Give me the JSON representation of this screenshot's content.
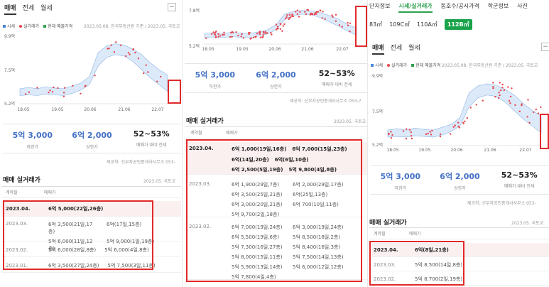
{
  "panel1": {
    "tabs": [
      "매매",
      "전세",
      "월세"
    ],
    "minus": "−",
    "legend": {
      "market": "시세",
      "real": "실거래가",
      "official": "현재 매물가격"
    },
    "source": "2023.05.08. 한국부동산원 기준 / 2023.05. 국토교",
    "chart": {
      "yticks": [
        "9.9억",
        "7.5억",
        "5.2억"
      ],
      "xticks": [
        "18.05",
        "19.05",
        "20.06",
        "21.06",
        "22.07"
      ]
    },
    "summary": [
      {
        "value": "5억 3,000",
        "label": "하한가"
      },
      {
        "value": "6억 2,000",
        "label": "상한가"
      },
      {
        "value": "52~53%",
        "label": "매매가 대비 전세"
      }
    ],
    "provider": "제공처: 신부자공인중개사사무소 053-",
    "sales_title": "매매 실거래가",
    "sales_date": "2023.05. 국토교",
    "col_ym": "계약월",
    "col_price": "매매가",
    "rows": [
      {
        "ym": "2023.04.",
        "deals": [
          "6억 5,000(22일,26층)"
        ]
      },
      {
        "ym": "2023.03.",
        "deals": [
          "6억 3,500(21일,17층)",
          "6억(17일,15층)",
          "5억 6,000(11일,12층)",
          "5억 9,000(1일,19층)"
        ]
      },
      {
        "ym": "2023.02.",
        "deals": [
          "5억 6,000(28일,8층)",
          "5억 6,000(4일,8층)"
        ]
      },
      {
        "ym": "2023.01.",
        "deals": [
          "6억 3,500(27일,24층)",
          "5억 7,500(3일,11층)"
        ]
      }
    ]
  },
  "panel2": {
    "chart": {
      "yticks": [
        "7.8억",
        "5.2억"
      ],
      "xticks": [
        "18.05",
        "19.05",
        "20.06",
        "21.06",
        "22.07"
      ]
    },
    "summary": [
      {
        "value": "5억 3,000",
        "label": "하한가"
      },
      {
        "value": "6억 2,000",
        "label": "상한가"
      },
      {
        "value": "52~53%",
        "label": "매매가 대비 전세"
      }
    ],
    "provider": "제공처: 신부자공인중개사사무소 053-7",
    "sales_title": "매매 실거래가",
    "sales_date": "2023.05. 국토교",
    "col_ym": "계약월",
    "col_price": "매매가",
    "rows": [
      {
        "ym": "2023.04.",
        "deals": [
          "6억 1,000(19일,16층)",
          "6억 7,000(15일,23층)",
          "6억(14일,20층)",
          "6억(6일,10층)",
          "6억 2,500(5일,19층)",
          "5억 9,800(4일,8층)"
        ]
      },
      {
        "ym": "2023.03.",
        "deals": [
          "6억 1,900(29일,7층)",
          "6억 2,000(29일,17층)",
          "6억 3,500(25일,21층)",
          "6억(25일,13층)",
          "6억 3,000(20일,21층)",
          "6억 700(10일,11층)",
          "5억 9,700(2일,18층)"
        ]
      },
      {
        "ym": "2023.02.",
        "deals": [
          "6억 7,000(19일,24층)",
          "6억 3,000(19일,24층)",
          "6억 5,500(19일,6층)",
          "5억 8,500(18일,2층)",
          "5억 7,300(16일,27층)",
          "5억 8,400(16일,3층)",
          "5억 8,000(15일,11층)",
          "5억 7,500(14일,13층)",
          "5억 5,900(13일,14층)",
          "5억 6,000(12일,12층)",
          "5억 7,800(4일,4층)"
        ]
      }
    ]
  },
  "panel3": {
    "nav": [
      "단지정보",
      "시세/실거래가",
      "동호수/공시가격",
      "학군정보",
      "사진"
    ],
    "sizes": [
      "83㎡",
      "109C㎡",
      "110A㎡",
      "112B㎡"
    ],
    "tabs": [
      "매매",
      "전세",
      "월세"
    ],
    "minus": "−",
    "legend": {
      "market": "시세",
      "real": "실거래가",
      "official": "현재 매물가격"
    },
    "source": "2023.05.08. 한국부동산원 기준 / 2023.05. 국토교",
    "chart": {
      "yticks": [
        "9.9억",
        "7.5억",
        "5.2억"
      ],
      "xticks": [
        "18.05",
        "19.05",
        "20.06",
        "21.06",
        "22.07"
      ]
    },
    "summary": [
      {
        "value": "5억 3,000",
        "label": "하한가"
      },
      {
        "value": "6억 2,000",
        "label": "상한가"
      },
      {
        "value": "52~53%",
        "label": "매매가 대비 전세"
      }
    ],
    "provider": "제공처: 신부자공인중개사사무소 053-",
    "sales_title": "매매 실거래가",
    "sales_date": "2023.05. 국토교",
    "col_ym": "계약월",
    "col_price": "매매가",
    "rows": [
      {
        "ym": "2023.04.",
        "deals": [
          "6억(8일,21층)"
        ]
      },
      {
        "ym": "2023.03.",
        "deals": [
          "5억 8,500(14일,8층)"
        ]
      },
      {
        "ym": "2023.02.",
        "deals": [
          "5억 8,700(2일,19층)"
        ]
      }
    ]
  },
  "colors": {
    "accent_blue": "#4571c6",
    "real_price_red": "#e8454f",
    "market_band": "#dbe9f8",
    "official_green": "#2ea14f",
    "highlight_box": "#e12a2a"
  }
}
